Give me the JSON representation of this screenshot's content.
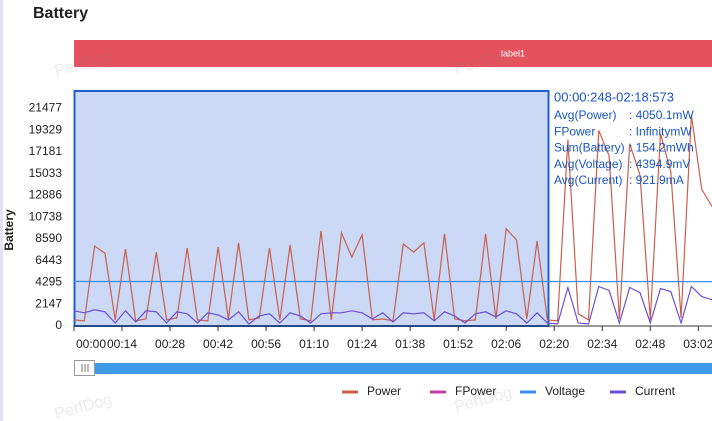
{
  "chart_data": {
    "type": "line",
    "title": "Battery",
    "ylabel": "Battery",
    "band_label": "label1",
    "watermark": "PerfDog",
    "selection": {
      "range": "00:00:248-02:18:573",
      "stats": [
        [
          "Avg(Power)",
          ": 4050.1mW"
        ],
        [
          "FPower",
          ": InfinitymW"
        ],
        [
          "Sum(Battery)",
          ": 154.2mWh"
        ],
        [
          "Avg(Voltage)",
          ": 4394.9mV"
        ],
        [
          "Avg(Current)",
          ": 921.9mA"
        ]
      ]
    },
    "x": [
      0,
      3,
      6,
      9,
      12,
      15,
      18,
      21,
      24,
      27,
      30,
      33,
      36,
      39,
      42,
      45,
      48,
      51,
      54,
      57,
      60,
      63,
      66,
      69,
      72,
      75,
      78,
      81,
      84,
      87,
      90,
      93,
      96,
      99,
      102,
      105,
      108,
      111,
      114,
      117,
      120,
      123,
      126,
      129,
      132,
      135,
      138,
      141,
      144,
      147,
      150,
      153,
      156,
      159,
      162,
      165,
      168,
      171,
      174,
      177,
      180,
      183,
      186
    ],
    "xlim": [
      0,
      186
    ],
    "xticks": [
      {
        "value": 0,
        "label": "00:00"
      },
      {
        "value": 14,
        "label": "00:14"
      },
      {
        "value": 28,
        "label": "00:28"
      },
      {
        "value": 42,
        "label": "00:42"
      },
      {
        "value": 56,
        "label": "00:56"
      },
      {
        "value": 70,
        "label": "01:10"
      },
      {
        "value": 84,
        "label": "01:24"
      },
      {
        "value": 98,
        "label": "01:38"
      },
      {
        "value": 112,
        "label": "01:52"
      },
      {
        "value": 126,
        "label": "02:06"
      },
      {
        "value": 140,
        "label": "02:20"
      },
      {
        "value": 154,
        "label": "02:34"
      },
      {
        "value": 168,
        "label": "02:48"
      },
      {
        "value": 182,
        "label": "03:02"
      }
    ],
    "ylim": [
      0,
      23300
    ],
    "yticks": [
      0,
      2147,
      4295,
      6443,
      8590,
      10738,
      12886,
      15033,
      17181,
      19329,
      21477
    ],
    "series": [
      {
        "name": "Power",
        "color": "#c9604c",
        "values": [
          600,
          500,
          7900,
          7200,
          600,
          7600,
          500,
          700,
          7300,
          600,
          800,
          7700,
          600,
          500,
          7800,
          700,
          8200,
          600,
          800,
          7700,
          600,
          8000,
          700,
          500,
          9400,
          600,
          9200,
          6800,
          9000,
          600,
          700,
          500,
          8100,
          7300,
          8200,
          600,
          9100,
          700,
          500,
          600,
          9100,
          700,
          9600,
          8500,
          700,
          8400,
          600,
          500,
          18400,
          1200,
          600,
          19300,
          16800,
          700,
          18000,
          14900,
          600,
          19000,
          15200,
          800,
          20800,
          13500,
          11800
        ]
      },
      {
        "name": "FPower",
        "color": "#c43fa3",
        "values": [
          null,
          null,
          null,
          null,
          null,
          null,
          null,
          null,
          null,
          null,
          null,
          null,
          null,
          null,
          null,
          null,
          null,
          null,
          null,
          null,
          null,
          null,
          null,
          null,
          null,
          null,
          null,
          null,
          null,
          null,
          null,
          null,
          null,
          null,
          null,
          null,
          null,
          null,
          null,
          null,
          null,
          null,
          null,
          null,
          null,
          null,
          null,
          null,
          null,
          null,
          null,
          null,
          null,
          null,
          null,
          null,
          null,
          null,
          null,
          null,
          null,
          null,
          null
        ]
      },
      {
        "name": "Voltage",
        "color": "#3d8de8",
        "values": [
          4400,
          4395,
          4390,
          4392,
          4398,
          4390,
          4396,
          4393,
          4390,
          4397,
          4394,
          4390,
          4396,
          4395,
          4390,
          4393,
          4389,
          4397,
          4394,
          4390,
          4396,
          4391,
          4393,
          4397,
          4388,
          4394,
          4389,
          4390,
          4388,
          4396,
          4393,
          4397,
          4390,
          4391,
          4390,
          4396,
          4388,
          4394,
          4398,
          4395,
          4388,
          4394,
          4387,
          4390,
          4397,
          4389,
          4396,
          4398,
          4380,
          4397,
          4398,
          4379,
          4382,
          4397,
          4380,
          4383,
          4398,
          4380,
          4382,
          4397,
          4378,
          4384,
          4386
        ]
      },
      {
        "name": "Current",
        "color": "#6a4fd6",
        "values": [
          1500,
          1300,
          1600,
          1400,
          300,
          1500,
          400,
          1500,
          1400,
          300,
          1400,
          1200,
          300,
          1300,
          1100,
          600,
          1400,
          200,
          1000,
          1200,
          300,
          1300,
          1000,
          300,
          1200,
          1300,
          1300,
          1500,
          1300,
          700,
          1300,
          400,
          1300,
          1200,
          1300,
          500,
          1400,
          1000,
          300,
          1200,
          1400,
          900,
          1500,
          1200,
          300,
          1300,
          300,
          200,
          3800,
          300,
          200,
          3900,
          3500,
          300,
          3800,
          3300,
          300,
          3700,
          3400,
          300,
          3900,
          2900,
          2600
        ]
      }
    ]
  }
}
